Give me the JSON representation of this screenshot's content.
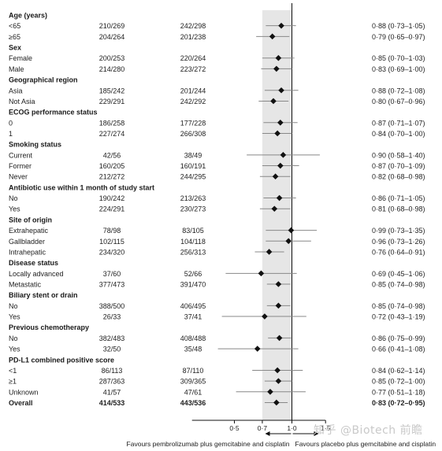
{
  "chart_data": {
    "type": "forest",
    "x_scale": "log",
    "xlim": [
      0.3,
      1.6
    ],
    "x_ticks": [
      {
        "value": 0.5,
        "label": "0·5"
      },
      {
        "value": 0.7,
        "label": "0·7"
      },
      {
        "value": 1.0,
        "label": "1·0"
      },
      {
        "value": 1.5,
        "label": "1·5"
      }
    ],
    "reference_line": 1.0,
    "shaded_band": [
      0.7,
      1.0
    ],
    "footer_left": "Favours pembrolizumab plus gemcitabine and cisplatin",
    "footer_right": "Favours placebo plus gemcitabine and cisplatin",
    "rows": [
      {
        "kind": "header",
        "label": "Age (years)"
      },
      {
        "kind": "row",
        "label": "<65",
        "pembro": "210/269",
        "placebo": "242/298",
        "hr": 0.88,
        "lo": 0.73,
        "hi": 1.05,
        "ci_text": "0·88 (0·73–1·05)"
      },
      {
        "kind": "row",
        "label": "≥65",
        "pembro": "204/264",
        "placebo": "201/238",
        "hr": 0.79,
        "lo": 0.65,
        "hi": 0.97,
        "ci_text": "0·79 (0·65–0·97)"
      },
      {
        "kind": "header",
        "label": "Sex"
      },
      {
        "kind": "row",
        "label": "Female",
        "pembro": "200/253",
        "placebo": "220/264",
        "hr": 0.85,
        "lo": 0.7,
        "hi": 1.03,
        "ci_text": "0·85 (0·70–1·03)"
      },
      {
        "kind": "row",
        "label": "Male",
        "pembro": "214/280",
        "placebo": "223/272",
        "hr": 0.83,
        "lo": 0.69,
        "hi": 1.0,
        "ci_text": "0·83 (0·69–1·00)"
      },
      {
        "kind": "header",
        "label": "Geographical region"
      },
      {
        "kind": "row",
        "label": "Asia",
        "pembro": "185/242",
        "placebo": "201/244",
        "hr": 0.88,
        "lo": 0.72,
        "hi": 1.08,
        "ci_text": "0·88 (0·72–1·08)"
      },
      {
        "kind": "row",
        "label": "Not Asia",
        "pembro": "229/291",
        "placebo": "242/292",
        "hr": 0.8,
        "lo": 0.67,
        "hi": 0.96,
        "ci_text": "0·80 (0·67–0·96)"
      },
      {
        "kind": "header",
        "label": "ECOG performance status"
      },
      {
        "kind": "row",
        "label": "0",
        "pembro": "186/258",
        "placebo": "177/228",
        "hr": 0.87,
        "lo": 0.71,
        "hi": 1.07,
        "ci_text": "0·87 (0·71–1·07)"
      },
      {
        "kind": "row",
        "label": "1",
        "pembro": "227/274",
        "placebo": "266/308",
        "hr": 0.84,
        "lo": 0.7,
        "hi": 1.0,
        "ci_text": "0·84 (0·70–1·00)"
      },
      {
        "kind": "header",
        "label": "Smoking status"
      },
      {
        "kind": "row",
        "label": "Current",
        "pembro": "42/56",
        "placebo": "38/49",
        "hr": 0.9,
        "lo": 0.58,
        "hi": 1.4,
        "ci_text": "0·90 (0·58–1·40)"
      },
      {
        "kind": "row",
        "label": "Former",
        "pembro": "160/205",
        "placebo": "160/191",
        "hr": 0.87,
        "lo": 0.7,
        "hi": 1.09,
        "ci_text": "0·87 (0·70–1·09)"
      },
      {
        "kind": "row",
        "label": "Never",
        "pembro": "212/272",
        "placebo": "244/295",
        "hr": 0.82,
        "lo": 0.68,
        "hi": 0.98,
        "ci_text": "0·82 (0·68–0·98)"
      },
      {
        "kind": "header",
        "label": "Antibiotic use within 1 month of study start"
      },
      {
        "kind": "row",
        "label": "No",
        "pembro": "190/242",
        "placebo": "213/263",
        "hr": 0.86,
        "lo": 0.71,
        "hi": 1.05,
        "ci_text": "0·86 (0·71–1·05)"
      },
      {
        "kind": "row",
        "label": "Yes",
        "pembro": "224/291",
        "placebo": "230/273",
        "hr": 0.81,
        "lo": 0.68,
        "hi": 0.98,
        "ci_text": "0·81 (0·68–0·98)"
      },
      {
        "kind": "header",
        "label": "Site of origin"
      },
      {
        "kind": "row",
        "label": "Extrahepatic",
        "pembro": "78/98",
        "placebo": "83/105",
        "hr": 0.99,
        "lo": 0.73,
        "hi": 1.35,
        "ci_text": "0·99 (0·73–1·35)"
      },
      {
        "kind": "row",
        "label": "Gallbladder",
        "pembro": "102/115",
        "placebo": "104/118",
        "hr": 0.96,
        "lo": 0.73,
        "hi": 1.26,
        "ci_text": "0·96 (0·73–1·26)"
      },
      {
        "kind": "row",
        "label": "Intrahepatic",
        "pembro": "234/320",
        "placebo": "256/313",
        "hr": 0.76,
        "lo": 0.64,
        "hi": 0.91,
        "ci_text": "0·76 (0·64–0·91)"
      },
      {
        "kind": "header",
        "label": "Disease status"
      },
      {
        "kind": "row",
        "label": "Locally advanced",
        "pembro": "37/60",
        "placebo": "52/66",
        "hr": 0.69,
        "lo": 0.45,
        "hi": 1.06,
        "ci_text": "0·69 (0·45–1·06)"
      },
      {
        "kind": "row",
        "label": "Metastatic",
        "pembro": "377/473",
        "placebo": "391/470",
        "hr": 0.85,
        "lo": 0.74,
        "hi": 0.98,
        "ci_text": "0·85 (0·74–0·98)"
      },
      {
        "kind": "header",
        "label": "Biliary stent or drain"
      },
      {
        "kind": "row",
        "label": "No",
        "pembro": "388/500",
        "placebo": "406/495",
        "hr": 0.85,
        "lo": 0.74,
        "hi": 0.98,
        "ci_text": "0·85 (0·74–0·98)"
      },
      {
        "kind": "row",
        "label": "Yes",
        "pembro": "26/33",
        "placebo": "37/41",
        "hr": 0.72,
        "lo": 0.43,
        "hi": 1.19,
        "ci_text": "0·72 (0·43–1·19)"
      },
      {
        "kind": "header",
        "label": "Previous chemotherapy"
      },
      {
        "kind": "row",
        "label": "No",
        "pembro": "382/483",
        "placebo": "408/488",
        "hr": 0.86,
        "lo": 0.75,
        "hi": 0.99,
        "ci_text": "0·86 (0·75–0·99)"
      },
      {
        "kind": "row",
        "label": "Yes",
        "pembro": "32/50",
        "placebo": "35/48",
        "hr": 0.66,
        "lo": 0.41,
        "hi": 1.08,
        "ci_text": "0·66 (0·41–1·08)"
      },
      {
        "kind": "header",
        "label": "PD-L1 combined positive score"
      },
      {
        "kind": "row",
        "label": "<1",
        "pembro": "86/113",
        "placebo": "87/110",
        "hr": 0.84,
        "lo": 0.62,
        "hi": 1.14,
        "ci_text": "0·84 (0·62–1·14)"
      },
      {
        "kind": "row",
        "label": "≥1",
        "pembro": "287/363",
        "placebo": "309/365",
        "hr": 0.85,
        "lo": 0.72,
        "hi": 1.0,
        "ci_text": "0·85 (0·72–1·00)"
      },
      {
        "kind": "row",
        "label": "Unknown",
        "pembro": "41/57",
        "placebo": "47/61",
        "hr": 0.77,
        "lo": 0.51,
        "hi": 1.18,
        "ci_text": "0·77 (0·51–1·18)"
      },
      {
        "kind": "row",
        "label": "Overall",
        "bold": true,
        "pembro": "414/533",
        "placebo": "443/536",
        "hr": 0.83,
        "lo": 0.72,
        "hi": 0.95,
        "ci_text": "0·83 (0·72–0·95)"
      }
    ]
  },
  "watermark": "知乎 @Biotech 前瞻"
}
